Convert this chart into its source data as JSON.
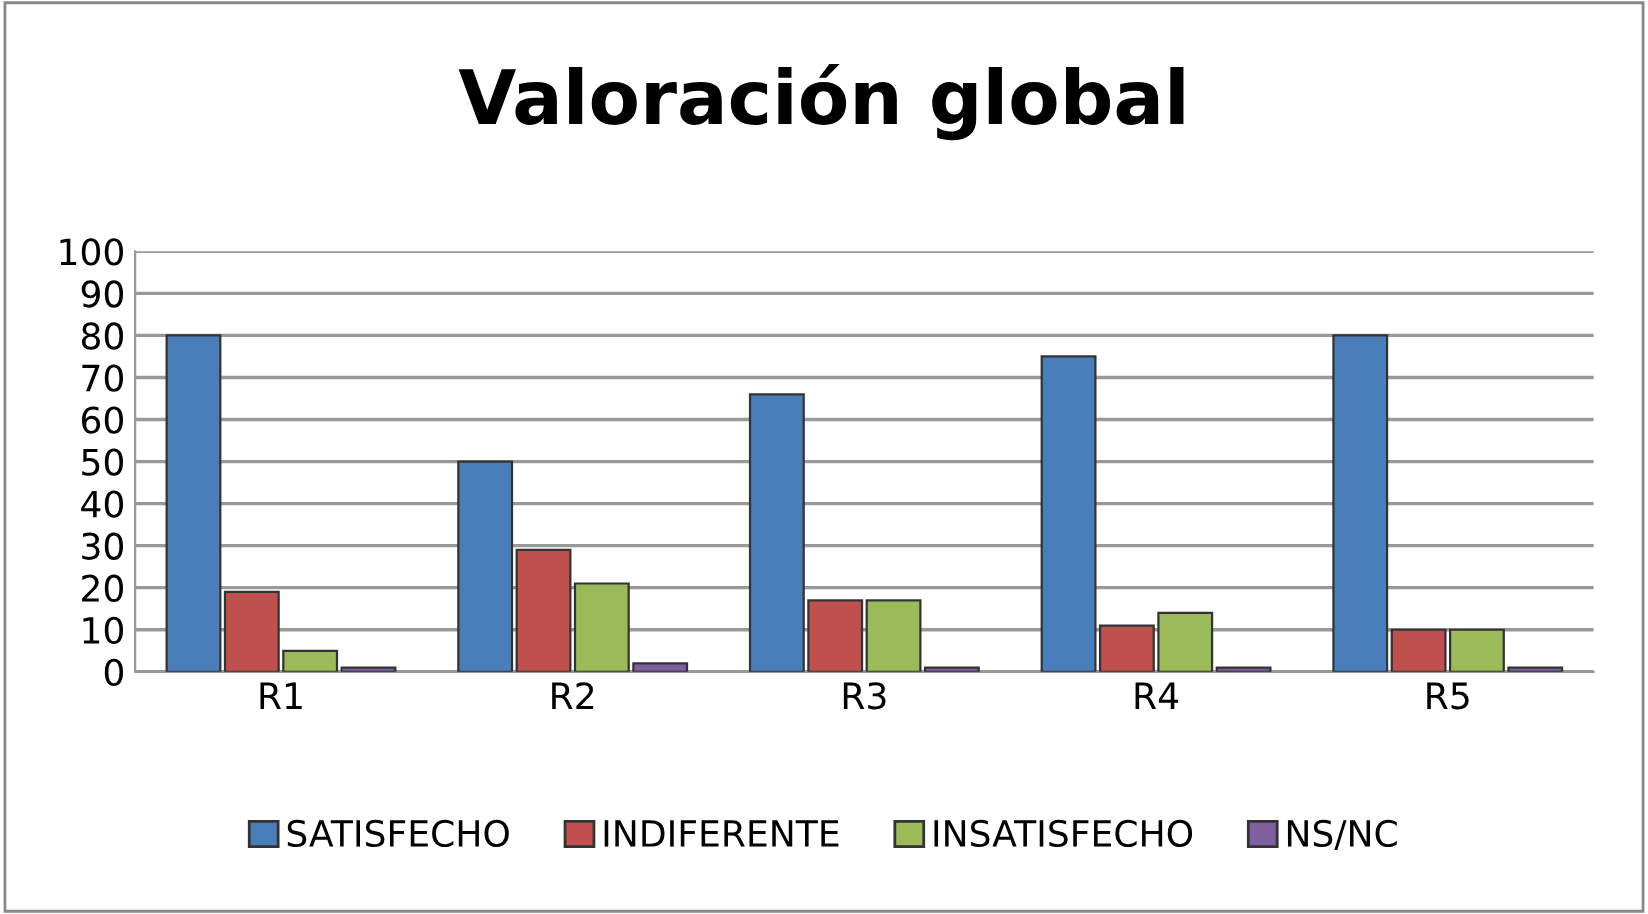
{
  "chart_data": {
    "type": "bar",
    "title": "Valoración global",
    "categories": [
      "R1",
      "R2",
      "R3",
      "R4",
      "R5"
    ],
    "series": [
      {
        "name": "SATISFECHO",
        "color": "#4a7ebb",
        "values": [
          80,
          50,
          66,
          75,
          80
        ]
      },
      {
        "name": "INDIFERENTE",
        "color": "#c0504d",
        "values": [
          19,
          29,
          17,
          11,
          10
        ]
      },
      {
        "name": "INSATISFECHO",
        "color": "#9bbb59",
        "values": [
          5,
          21,
          17,
          14,
          10
        ]
      },
      {
        "name": "NS/NC",
        "color": "#7f5fa0",
        "values": [
          1,
          2,
          1,
          1,
          1
        ]
      }
    ],
    "ylim": [
      0,
      100
    ],
    "yticks": [
      0,
      10,
      20,
      30,
      40,
      50,
      60,
      70,
      80,
      90,
      100
    ],
    "grid": "y",
    "legend": "bottom"
  }
}
